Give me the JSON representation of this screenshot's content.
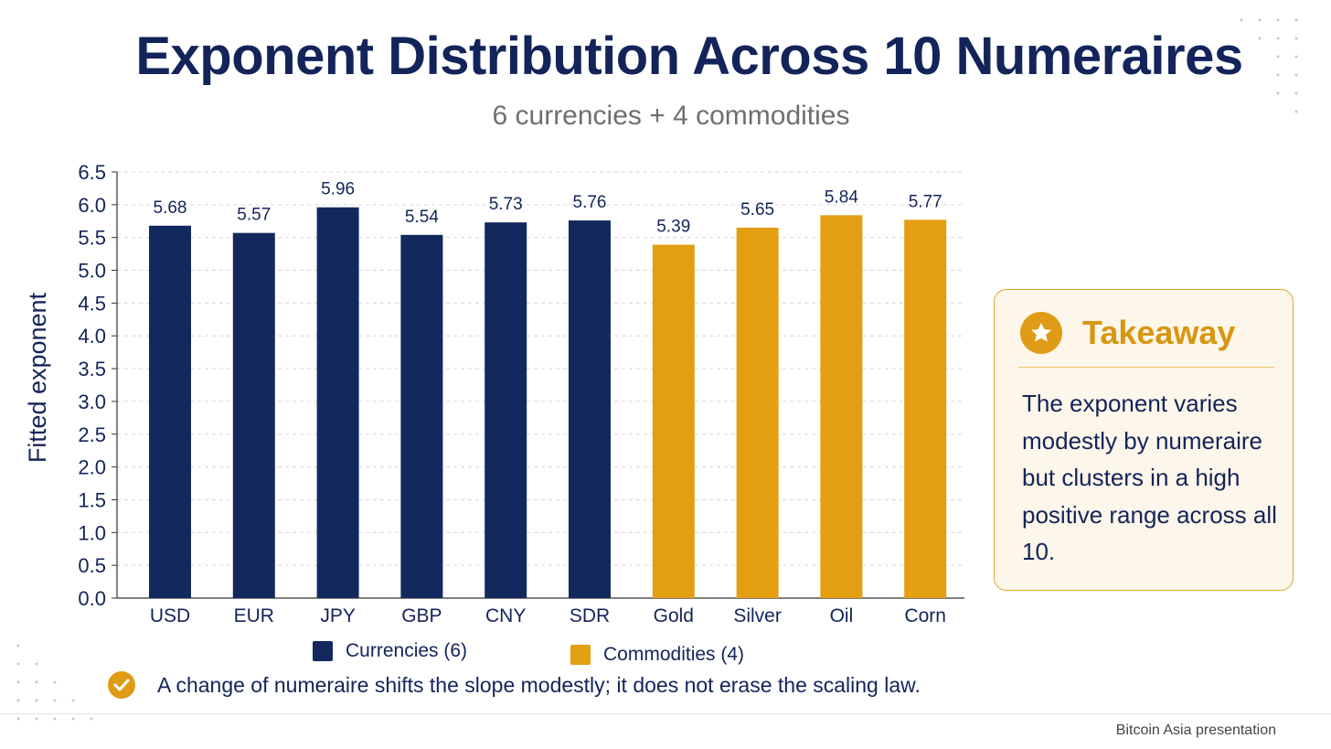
{
  "slide": {
    "footer": "Bitcoin Asia presentation"
  },
  "takeaway": {
    "icon": "star-icon",
    "title": "Takeaway",
    "body": "The exponent varies modestly by numeraire but clusters in a high positive range across all 10."
  },
  "note": {
    "icon": "check-icon",
    "text": "A change of numeraire shifts the slope modestly; it does not erase the scaling law."
  },
  "colors": {
    "currencies": "#13295e",
    "commodities": "#e39e12",
    "title": "#13245a",
    "accent": "#e09b16"
  },
  "chart_data": {
    "type": "bar",
    "title": "Exponent Distribution Across 10 Numeraires",
    "subtitle": "6 currencies + 4 commodities",
    "xlabel": "",
    "ylabel": "Fitted exponent",
    "ylim": [
      0,
      6.5
    ],
    "yticks": [
      "0.0",
      "0.5",
      "1.0",
      "1.5",
      "2.0",
      "2.5",
      "3.0",
      "3.5",
      "4.0",
      "4.5",
      "5.0",
      "5.5",
      "6.0",
      "6.5"
    ],
    "grid": true,
    "legend_position": "bottom",
    "categories": [
      "USD",
      "EUR",
      "JPY",
      "GBP",
      "CNY",
      "SDR",
      "Gold",
      "Silver",
      "Oil",
      "Corn"
    ],
    "series": [
      {
        "name": "Currencies (6)",
        "group": "currencies",
        "indices": [
          0,
          1,
          2,
          3,
          4,
          5
        ]
      },
      {
        "name": "Commodities (4)",
        "group": "commodities",
        "indices": [
          6,
          7,
          8,
          9
        ]
      }
    ],
    "values": [
      5.68,
      5.57,
      5.96,
      5.54,
      5.73,
      5.76,
      5.39,
      5.65,
      5.84,
      5.77
    ],
    "data_labels": [
      "5.68",
      "5.57",
      "5.96",
      "5.54",
      "5.73",
      "5.76",
      "5.39",
      "5.65",
      "5.84",
      "5.77"
    ]
  }
}
